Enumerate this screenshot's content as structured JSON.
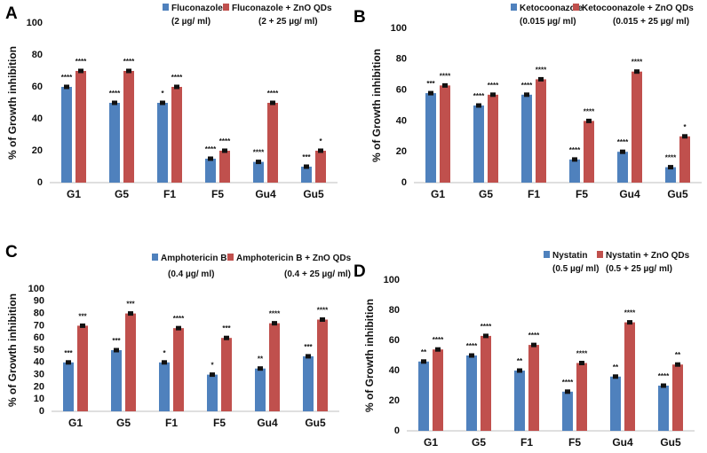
{
  "chart_data": [
    {
      "panel": "A",
      "type": "bar",
      "ylabel": "% of Growth inhibition",
      "ylim": [
        0,
        100
      ],
      "yticks": [
        0,
        20,
        40,
        60,
        80,
        100
      ],
      "categories": [
        "G1",
        "G5",
        "F1",
        "F5",
        "Gu4",
        "Gu5"
      ],
      "series": [
        {
          "name": "Fluconazole",
          "dose": "(2 µg/ ml)",
          "color": "#4f81bd",
          "values": [
            60,
            50,
            50,
            15,
            13,
            10
          ],
          "errors": [
            1,
            1,
            1,
            1,
            1,
            1
          ],
          "sig": [
            "****",
            "****",
            "*",
            "****",
            "****",
            "***"
          ]
        },
        {
          "name": "Fluconazole + ZnO QDs",
          "dose": "(2 + 25 µg/ ml)",
          "color": "#c0504d",
          "values": [
            70,
            70,
            60,
            20,
            50,
            20
          ],
          "errors": [
            1,
            1,
            1,
            1,
            1,
            1
          ],
          "sig": [
            "****",
            "****",
            "****",
            "****",
            "****",
            "*"
          ]
        }
      ]
    },
    {
      "panel": "B",
      "type": "bar",
      "ylabel": "% of Growth inhibition",
      "ylim": [
        0,
        100
      ],
      "yticks": [
        0,
        20,
        40,
        60,
        80,
        100
      ],
      "categories": [
        "G1",
        "G5",
        "F1",
        "F5",
        "Gu4",
        "Gu5"
      ],
      "series": [
        {
          "name": "Ketocoonazole",
          "dose": "(0.015 µg/ ml)",
          "color": "#4f81bd",
          "values": [
            58,
            50,
            57,
            15,
            20,
            10
          ],
          "errors": [
            1,
            1,
            1,
            1,
            1,
            1
          ],
          "sig": [
            "***",
            "****",
            "****",
            "****",
            "****",
            "****"
          ]
        },
        {
          "name": "Ketocoonazole + ZnO QDs",
          "dose": "(0.015 + 25 µg/ ml)",
          "color": "#c0504d",
          "values": [
            63,
            57,
            67,
            40,
            72,
            30
          ],
          "errors": [
            1,
            1,
            1,
            1,
            1,
            1
          ],
          "sig": [
            "****",
            "****",
            "****",
            "****",
            "****",
            "*"
          ]
        }
      ]
    },
    {
      "panel": "C",
      "type": "bar",
      "ylabel": "% of Growth inhibition",
      "ylim": [
        0,
        100
      ],
      "yticks": [
        0,
        10,
        20,
        30,
        40,
        50,
        60,
        70,
        80,
        90,
        100
      ],
      "categories": [
        "G1",
        "G5",
        "F1",
        "F5",
        "Gu4",
        "Gu5"
      ],
      "series": [
        {
          "name": "Amphotericin B",
          "dose": "(0.4 µg/ ml)",
          "color": "#4f81bd",
          "values": [
            40,
            50,
            40,
            30,
            35,
            45
          ],
          "errors": [
            1,
            1,
            1,
            1,
            1,
            1
          ],
          "sig": [
            "***",
            "***",
            "*",
            "*",
            "**",
            "***"
          ]
        },
        {
          "name": "Amphotericin B + ZnO QDs",
          "dose": "(0.4 + 25 µg/ ml)",
          "color": "#c0504d",
          "values": [
            70,
            80,
            68,
            60,
            72,
            75
          ],
          "errors": [
            1,
            1,
            1,
            1,
            1,
            1
          ],
          "sig": [
            "***",
            "***",
            "****",
            "***",
            "****",
            "****"
          ]
        }
      ]
    },
    {
      "panel": "D",
      "type": "bar",
      "ylabel": "% of Growth inhibition",
      "ylim": [
        0,
        100
      ],
      "yticks": [
        0,
        20,
        40,
        60,
        80,
        100
      ],
      "categories": [
        "G1",
        "G5",
        "F1",
        "F5",
        "Gu4",
        "Gu5"
      ],
      "series": [
        {
          "name": "Nystatin",
          "dose": "(0.5 µg/ ml)",
          "color": "#4f81bd",
          "values": [
            46,
            50,
            40,
            26,
            36,
            30
          ],
          "errors": [
            1,
            1,
            1,
            1,
            1,
            1
          ],
          "sig": [
            "**",
            "****",
            "**",
            "****",
            "**",
            "****"
          ]
        },
        {
          "name": "Nystatin + ZnO QDs",
          "dose": "(0.5 + 25 µg/ ml)",
          "color": "#c0504d",
          "values": [
            54,
            63,
            57,
            45,
            72,
            44
          ],
          "errors": [
            1,
            1,
            1,
            1,
            1,
            1
          ],
          "sig": [
            "****",
            "****",
            "****",
            "****",
            "****",
            "**"
          ]
        }
      ]
    }
  ]
}
